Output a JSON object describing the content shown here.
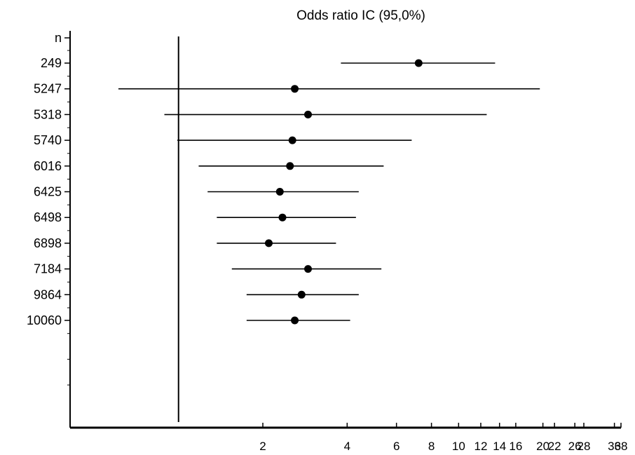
{
  "chart_data": {
    "type": "forest",
    "title": "Odds ratio IC  (95,0%)",
    "xscale": "log",
    "xlim": [
      0.41,
      38
    ],
    "reference_line": 1,
    "y_header": "n",
    "x_tick_labels": [
      {
        "value": 2,
        "label": "2"
      },
      {
        "value": 4,
        "label": "4"
      },
      {
        "value": 6,
        "label": "6"
      },
      {
        "value": 8,
        "label": "8"
      },
      {
        "value": 10,
        "label": "10"
      },
      {
        "value": 12,
        "label": "12"
      },
      {
        "value": 14,
        "label": "14"
      },
      {
        "value": 16,
        "label": "16"
      },
      {
        "value": 20,
        "label": "20"
      },
      {
        "value": 22,
        "label": "22"
      },
      {
        "value": 26,
        "label": "26"
      },
      {
        "value": 28,
        "label": "28"
      },
      {
        "value": 36,
        "label": "36"
      },
      {
        "value": 38,
        "label": "38"
      }
    ],
    "rows": [
      {
        "label": "249",
        "or": 7.2,
        "low": 3.8,
        "high": 13.5
      },
      {
        "label": "5247",
        "or": 2.6,
        "low": 0.61,
        "high": 19.5
      },
      {
        "label": "5318",
        "or": 2.9,
        "low": 0.89,
        "high": 12.6
      },
      {
        "label": "5740",
        "or": 2.55,
        "low": 0.99,
        "high": 6.8
      },
      {
        "label": "6016",
        "or": 2.5,
        "low": 1.18,
        "high": 5.4
      },
      {
        "label": "6425",
        "or": 2.3,
        "low": 1.27,
        "high": 4.4
      },
      {
        "label": "6498",
        "or": 2.35,
        "low": 1.37,
        "high": 4.3
      },
      {
        "label": "6898",
        "or": 2.1,
        "low": 1.37,
        "high": 3.65
      },
      {
        "label": "7184",
        "or": 2.9,
        "low": 1.55,
        "high": 5.3
      },
      {
        "label": "9864",
        "or": 2.75,
        "low": 1.75,
        "high": 4.4
      },
      {
        "label": "10060",
        "or": 2.6,
        "low": 1.75,
        "high": 4.1
      }
    ]
  }
}
